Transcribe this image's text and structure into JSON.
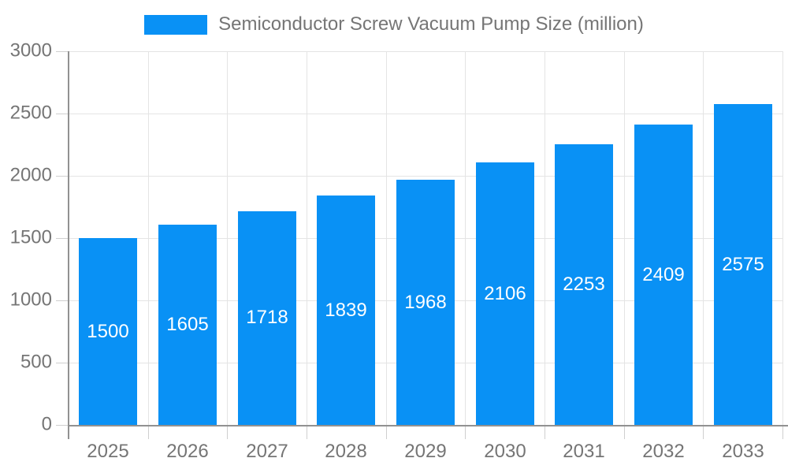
{
  "legend": {
    "position": "top"
  },
  "chart_data": {
    "type": "bar",
    "title": "Semiconductor Screw Vacuum Pump Size (million)",
    "categories": [
      "2025",
      "2026",
      "2027",
      "2028",
      "2029",
      "2030",
      "2031",
      "2032",
      "2033"
    ],
    "values": [
      1500,
      1605,
      1718,
      1839,
      1968,
      2106,
      2253,
      2409,
      2575
    ],
    "xlabel": "",
    "ylabel": "",
    "ylim": [
      0,
      3000
    ],
    "yticks": [
      0,
      500,
      1000,
      1500,
      2000,
      2500,
      3000
    ],
    "grid": true,
    "legend_position": "top",
    "show_value_labels": true,
    "value_labels_inside_centered": true,
    "colors": {
      "bar": "#0991f5",
      "axis": "#919191",
      "gridline": "#e4e4e4",
      "tick": "#cfcfcf",
      "tick_text": "#757575",
      "value_label_text": "#ffffff",
      "background": "#ffffff"
    }
  }
}
